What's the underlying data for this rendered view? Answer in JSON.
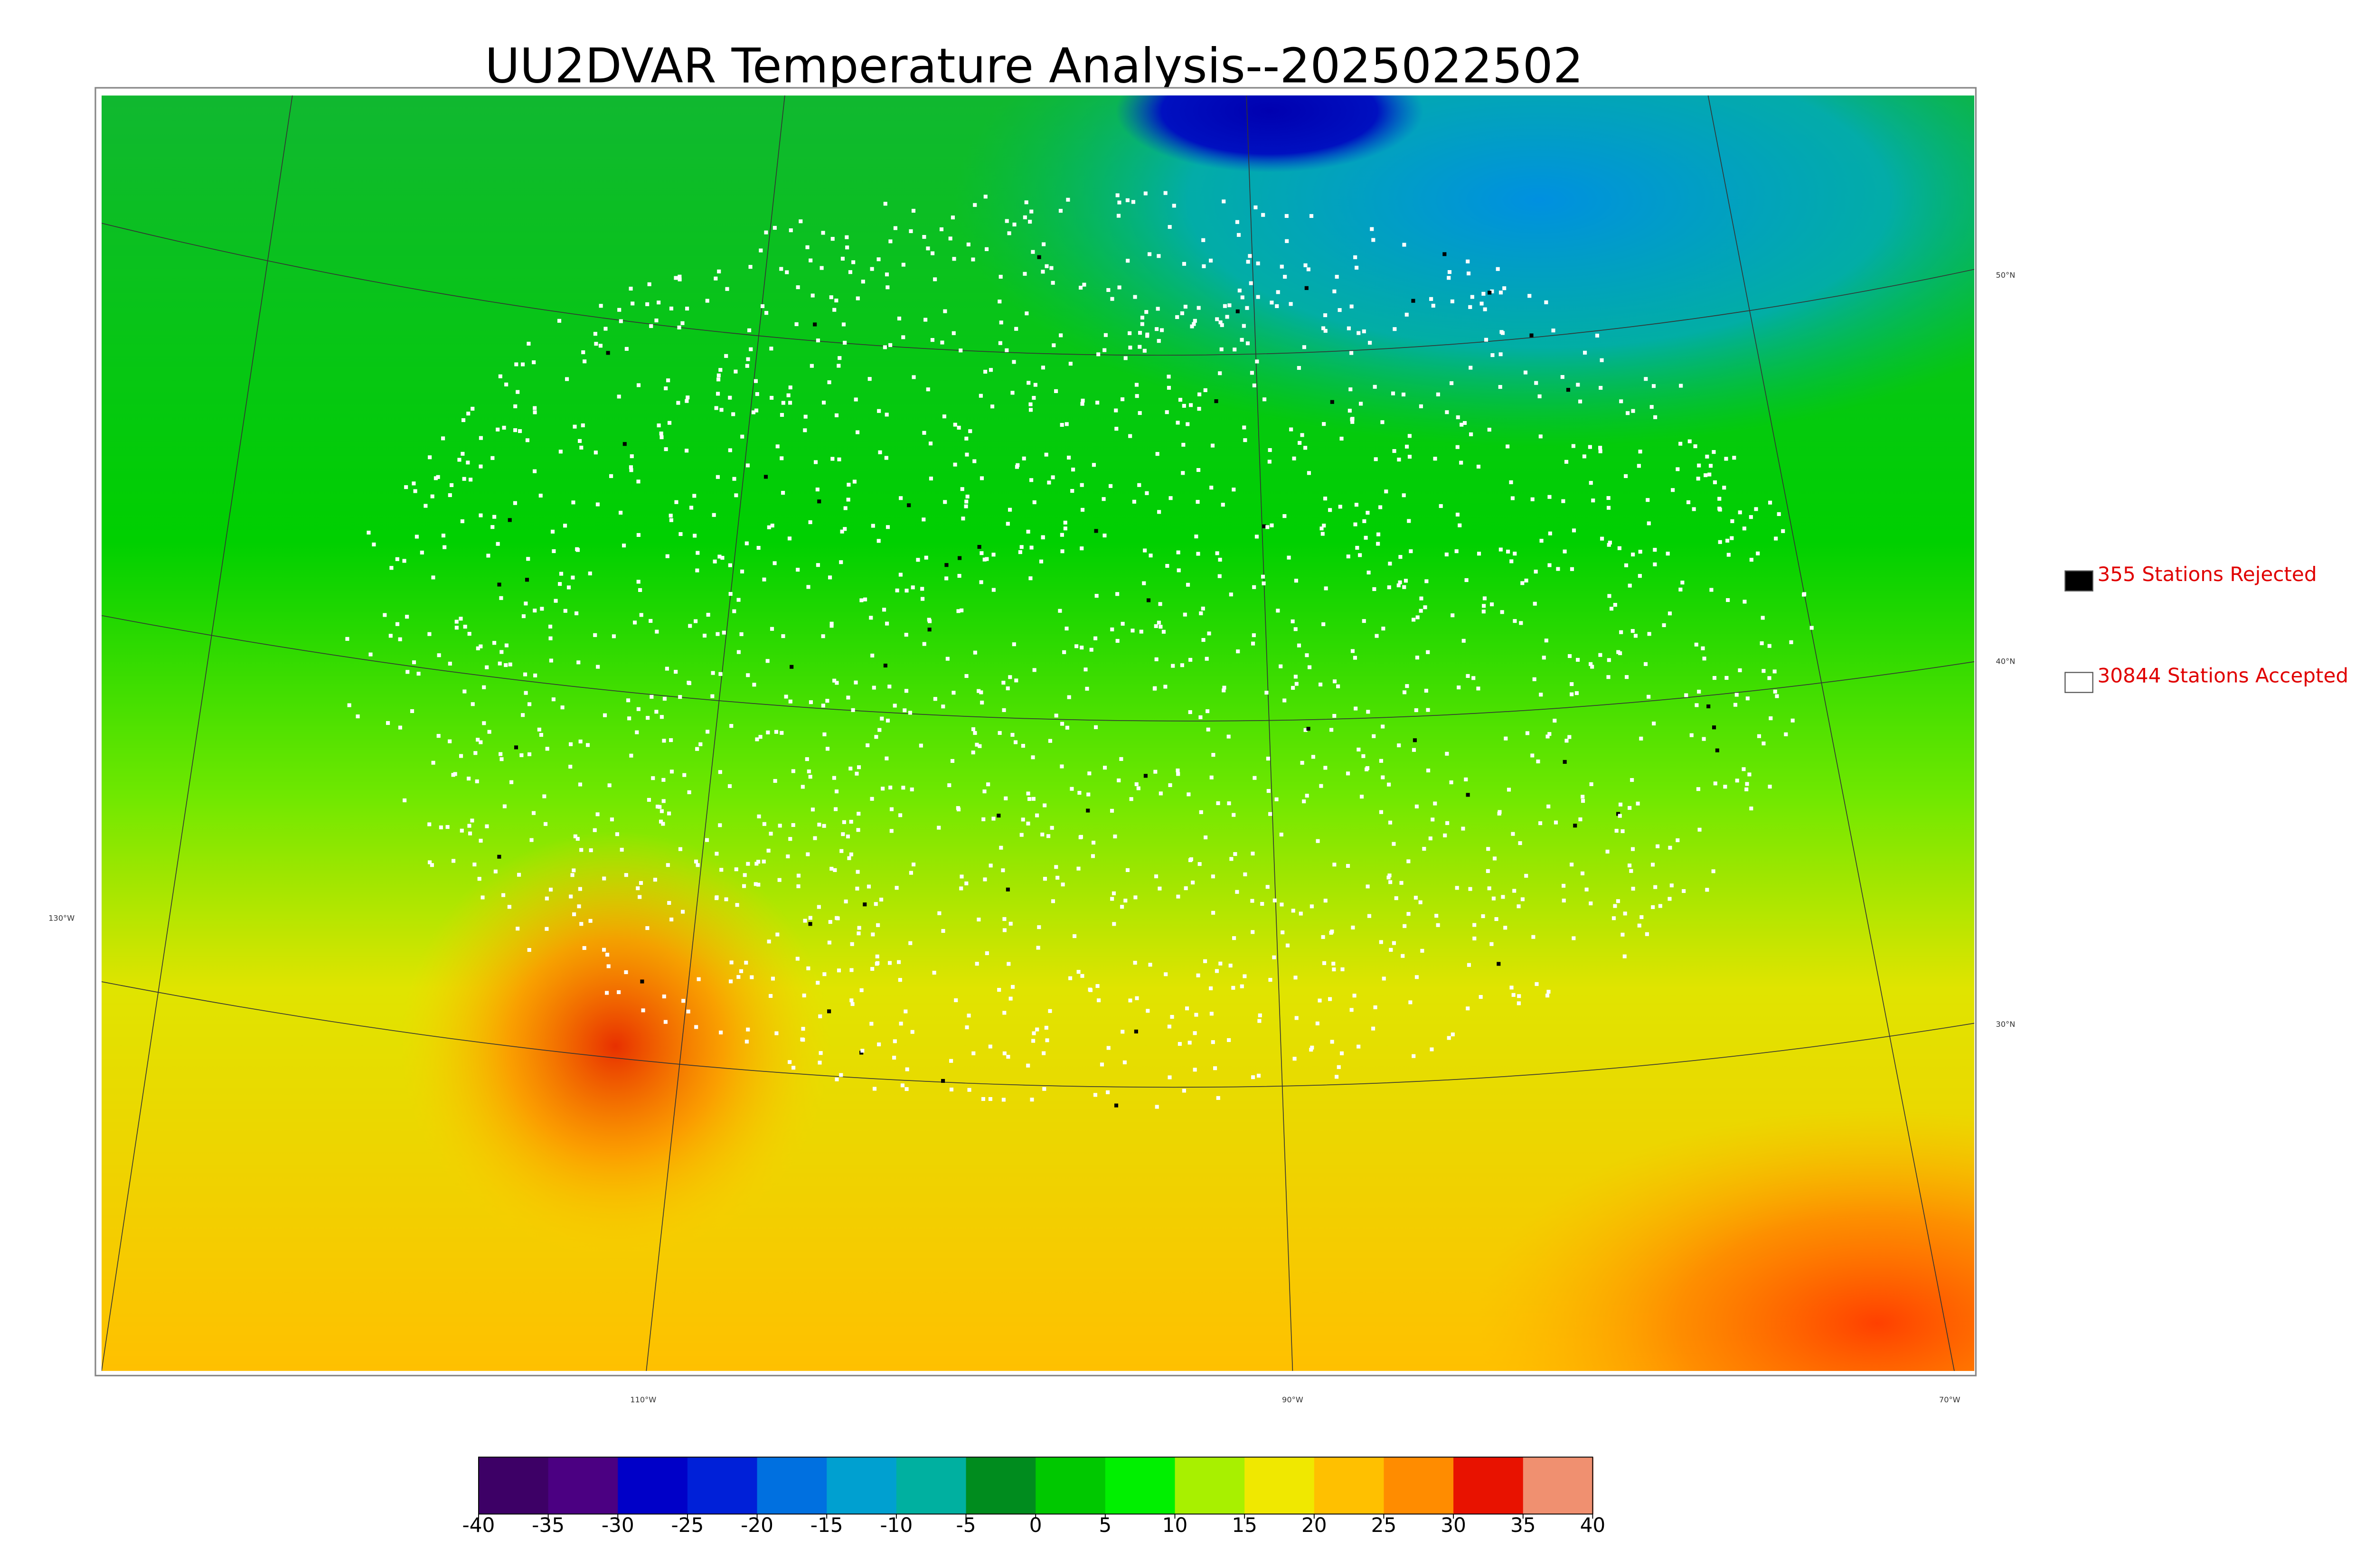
{
  "title": "UU2DVAR Temperature Analysis--2025022502",
  "map": {
    "lat_labels": [
      "50°N",
      "40°N",
      "30°N"
    ],
    "lon_labels": [
      "130°W",
      "110°W",
      "90°W",
      "70°W"
    ]
  },
  "legend": [
    {
      "label": "355 Stations Rejected",
      "color": "#000000"
    },
    {
      "label": "30844 Stations Accepted",
      "color": "#ffffff"
    }
  ],
  "colorbar": {
    "lim": [
      -40,
      40
    ],
    "ticks": [
      -40,
      -35,
      -30,
      -25,
      -20,
      -15,
      -10,
      -5,
      0,
      5,
      10,
      15,
      20,
      25,
      30,
      35,
      40
    ],
    "colors": [
      "#3d0066",
      "#4b0082",
      "#0000c8",
      "#0020d8",
      "#0070e0",
      "#00a0d0",
      "#00b0a0",
      "#008c1e",
      "#00c800",
      "#00f000",
      "#a8f000",
      "#f0e800",
      "#ffc000",
      "#ff8c00",
      "#e81200",
      "#f09070"
    ]
  }
}
